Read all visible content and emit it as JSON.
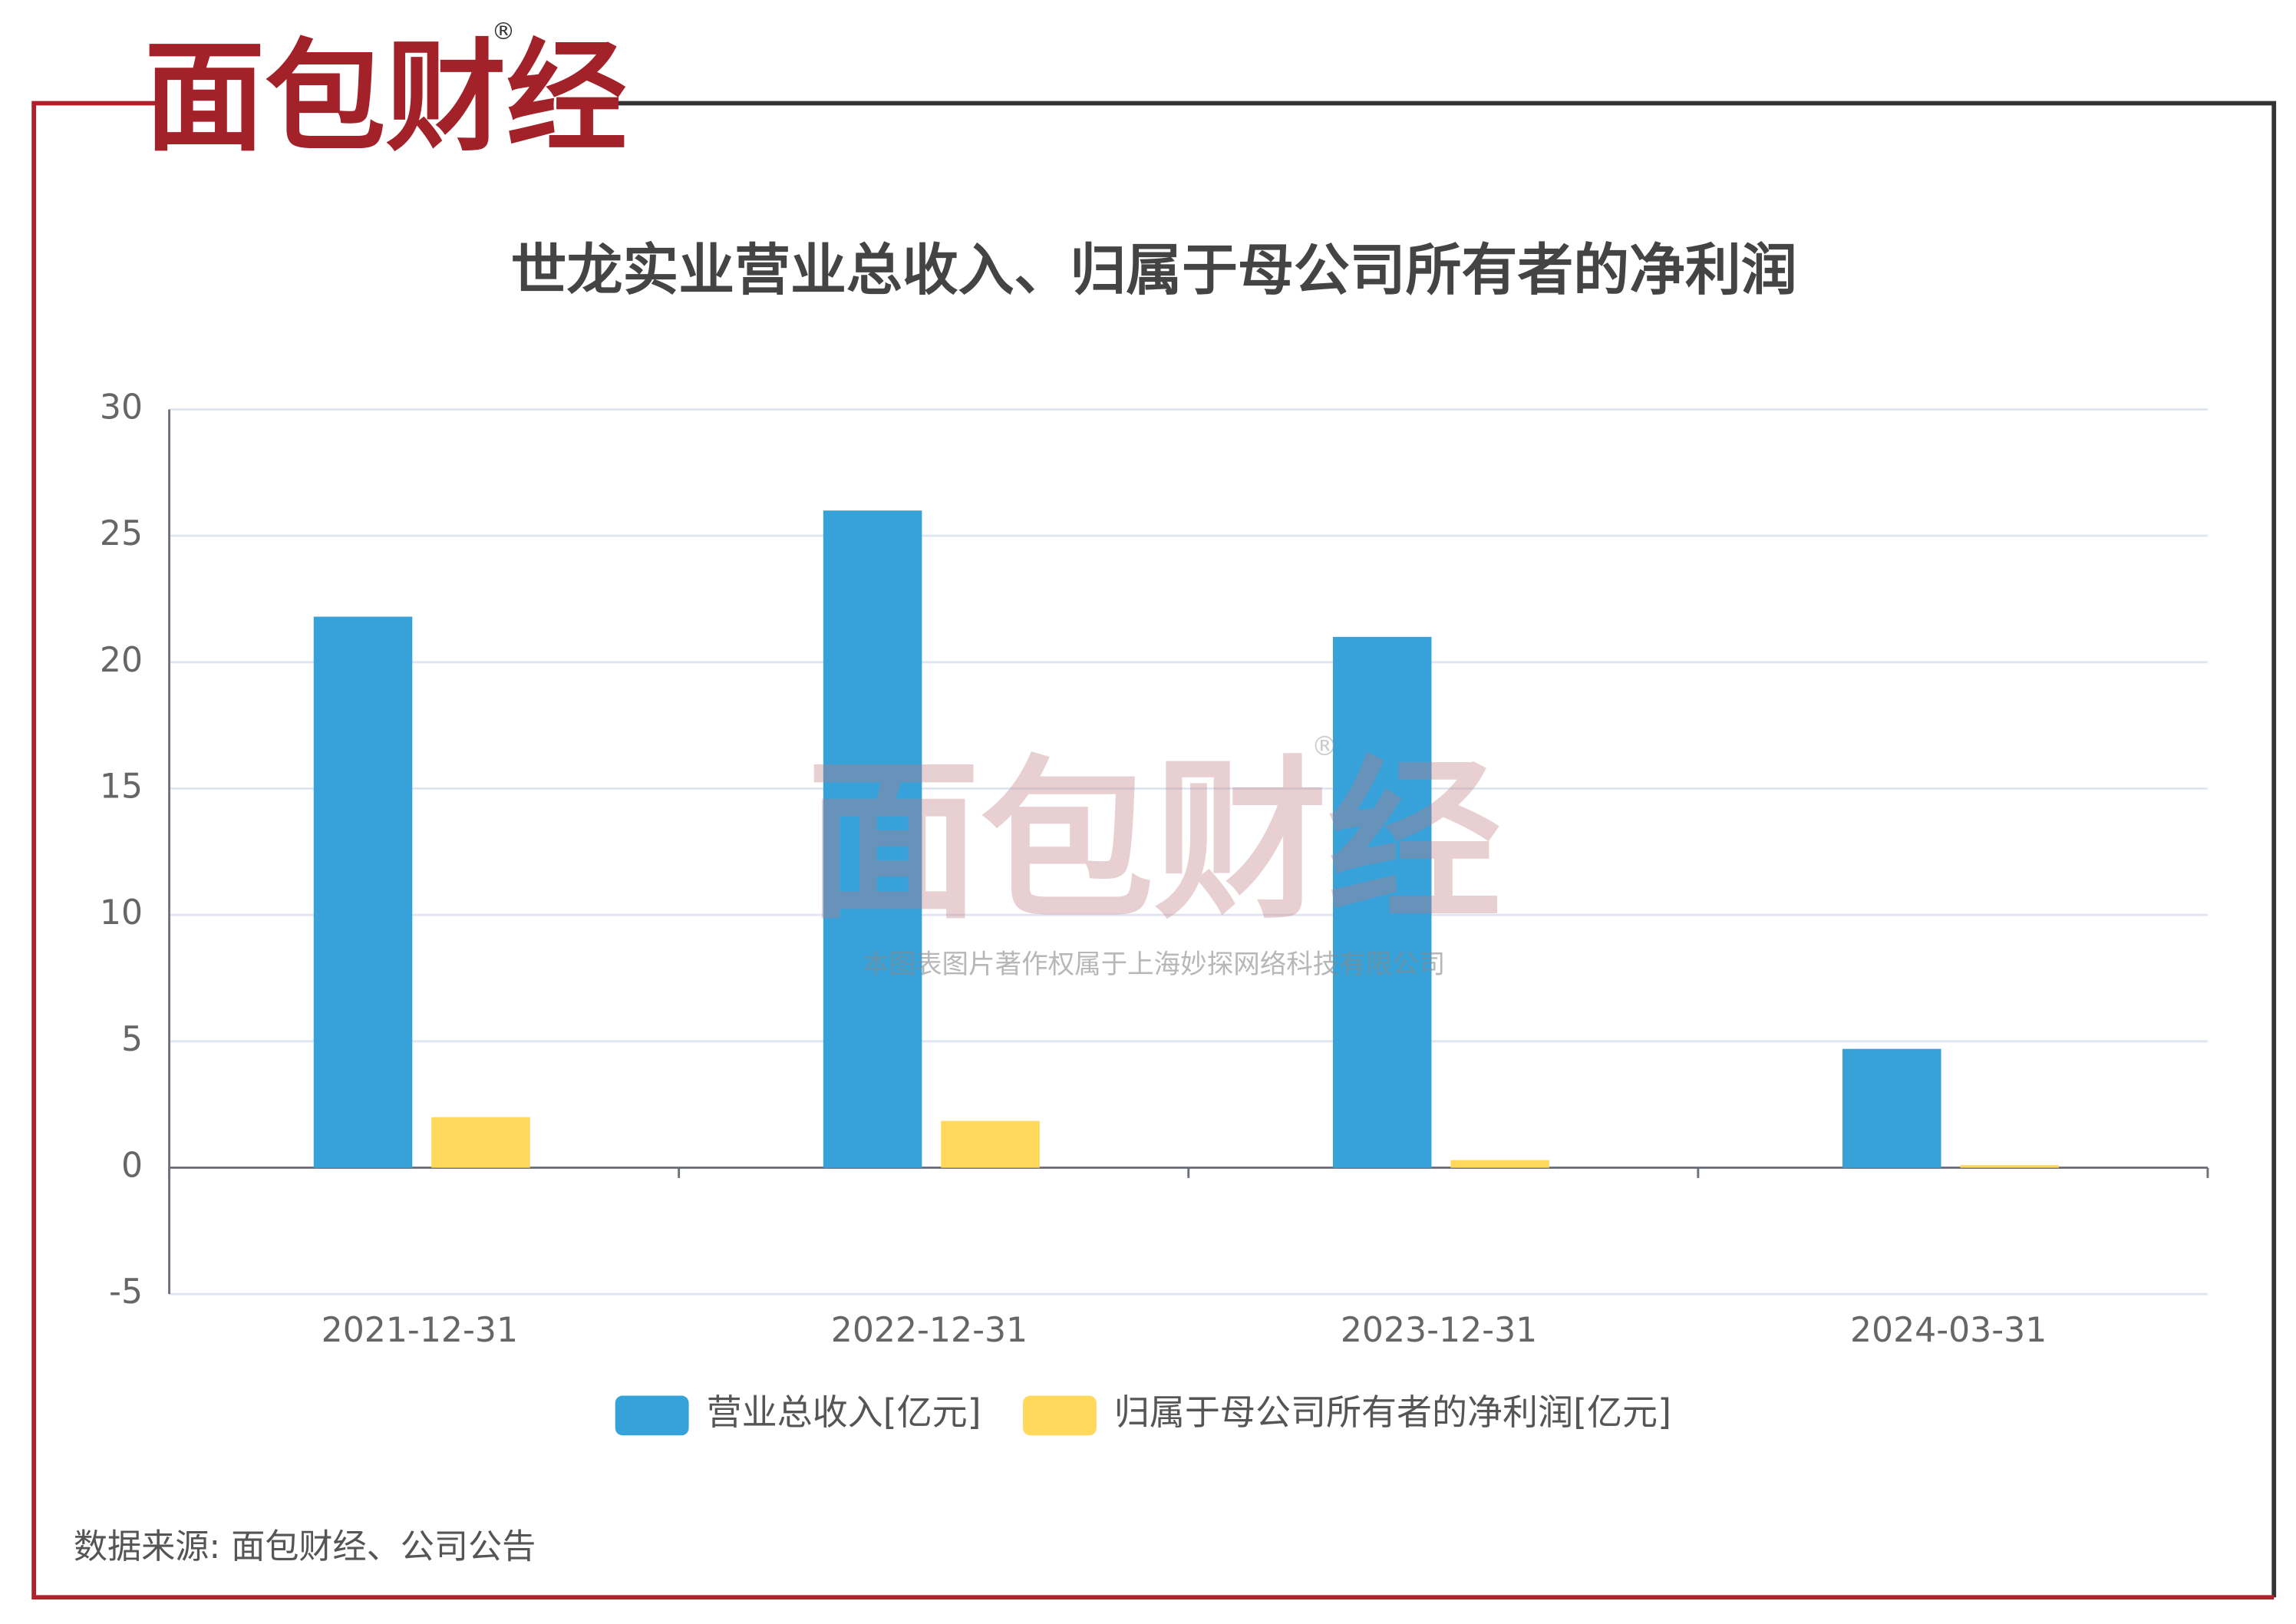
{
  "logo": "面包财经",
  "logo_mark": "®",
  "watermark": "本图表图片著作权属于上海妙探网络科技有限公司",
  "source": "数据来源: 面包财经、公司公告",
  "chart_data": {
    "type": "bar",
    "title": "世龙实业营业总收入、归属于母公司所有者的净利润",
    "categories": [
      "2021-12-31",
      "2022-12-31",
      "2023-12-31",
      "2024-03-31"
    ],
    "series": [
      {
        "name": "营业总收入[亿元]",
        "color": "#37a2da",
        "values": [
          21.8,
          26.0,
          21.0,
          4.7
        ]
      },
      {
        "name": "归属于母公司所有者的净利润[亿元]",
        "color": "#ffd85c",
        "values": [
          2.0,
          1.85,
          0.3,
          0.1
        ]
      }
    ],
    "ylim": [
      -5,
      30
    ],
    "yticks": [
      -5,
      0,
      5,
      10,
      15,
      20,
      25,
      30
    ],
    "grid": true
  }
}
